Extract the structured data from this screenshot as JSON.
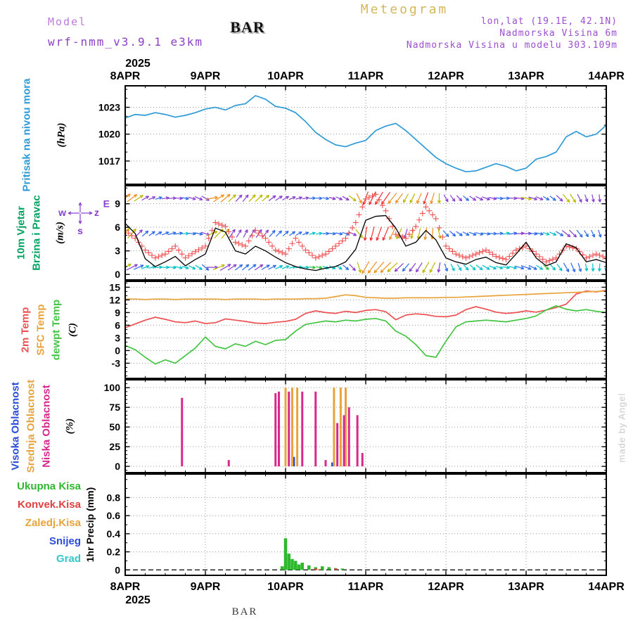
{
  "labels": {
    "meteogram": "Meteogram",
    "model": "Model",
    "model_name": "wrf-nmm_v3.9.1  e3km",
    "station": "BAR",
    "lonlat": "lon,lat (19.1E, 42.1N)",
    "elev": "Nadmorska Visina 6m",
    "model_elev": "Nadmorska Visina u modelu 303.109m",
    "p1_name": "Pritisak na nivou mora",
    "p1_unit": "(hPa)",
    "p2_name1": "10m Vjetar",
    "p2_name2": "Brzina i Pravac",
    "p2_unit": "(m/s)",
    "compass": {
      "left": "w",
      "right": "z",
      "bottom": "s",
      "axis_e": "E"
    },
    "p3_t2m": "2m Temp",
    "p3_sfc": "SFC Temp",
    "p3_dew": "dewpt Temp",
    "p3_unit": "(C)",
    "p4_high": "Visoka Oblacnost",
    "p4_mid": "Srednja Oblacnost",
    "p4_low": "Niska Oblacnost",
    "p4_unit": "(%)",
    "p5_total": "Ukupna Kisa",
    "p5_conv": "Konvek.Kisa",
    "p5_cold": "Zaledj.Kisa",
    "p5_snow": "Snijeg",
    "p5_hail": "Grad",
    "p5_unit": "1hr Precip (mm)",
    "credit": "made by Angel",
    "bottom_station": "BAR",
    "year": "2025"
  },
  "colors": {
    "pressure": "#2E9BD6",
    "wind_line": "#000000",
    "wind_plus": "#F05050",
    "t2m": "#ED5152",
    "sfc": "#E8A33D",
    "dew": "#43C543",
    "cloud_high": "#2B4BD8",
    "cloud_mid": "#E8A33D",
    "cloud_low": "#D8288C",
    "rain": "#2EB82E",
    "conv": "#E04040",
    "cold": "#E8A33D",
    "snow": "#2B4BD8",
    "hail": "#30C8C8",
    "header_purple": "#9B4FD0",
    "meteogram_title": "#D4B85C",
    "credit": "#C9C9C9",
    "grid": "#9A9A9A"
  },
  "chart_data": {
    "type": "line",
    "title": "Meteogram BAR wrf-nmm_v3.9.1 e3km",
    "x": {
      "step_hours": 3,
      "total_hours": 144,
      "tick_hours": [
        0,
        24,
        48,
        72,
        96,
        120,
        144
      ],
      "tick_labels": [
        "8APR",
        "9APR",
        "10APR",
        "11APR",
        "12APR",
        "13APR",
        "14APR"
      ],
      "year": "2025"
    },
    "panels": [
      {
        "id": "pressure",
        "type": "line",
        "ylabel": "(hPa)",
        "ylim": [
          1014.4,
          1025.4
        ],
        "yticks": [
          1017,
          1020,
          1023
        ],
        "yminor": 1,
        "series": [
          {
            "name": "Pritisak na nivou mora",
            "color": "#2E9BD6",
            "values": [
              1021.8,
              1022.2,
              1022.1,
              1022.4,
              1022.2,
              1021.9,
              1022.1,
              1022.4,
              1022.8,
              1023.0,
              1022.7,
              1023.2,
              1023.4,
              1024.3,
              1023.9,
              1023.1,
              1022.9,
              1022.4,
              1021.4,
              1020.2,
              1019.4,
              1018.8,
              1018.6,
              1019.0,
              1019.3,
              1020.4,
              1020.9,
              1021.2,
              1020.4,
              1019.4,
              1018.4,
              1017.4,
              1016.7,
              1016.2,
              1015.8,
              1015.9,
              1016.3,
              1016.7,
              1016.4,
              1015.9,
              1016.2,
              1017.2,
              1017.5,
              1018.0,
              1019.7,
              1020.3,
              1019.7,
              1020.0,
              1021.0
            ]
          }
        ]
      },
      {
        "id": "wind",
        "type": "wind",
        "ylabel": "(m/s)",
        "ylim": [
          -0.7,
          11.3
        ],
        "yticks": [
          0,
          3,
          6,
          9
        ],
        "yminor": 1,
        "speed": [
          6.5,
          5.2,
          2.0,
          1.0,
          1.6,
          2.3,
          1.1,
          1.9,
          2.6,
          5.9,
          5.4,
          3.0,
          2.6,
          3.6,
          3.0,
          2.2,
          1.5,
          1.0,
          0.7,
          0.5,
          0.8,
          1.0,
          1.6,
          3.2,
          6.9,
          7.4,
          7.5,
          5.9,
          3.6,
          4.1,
          5.6,
          4.4,
          2.1,
          1.6,
          1.3,
          1.9,
          2.2,
          1.5,
          1.2,
          2.6,
          4.1,
          2.1,
          1.1,
          1.6,
          3.9,
          3.4,
          1.6,
          1.9,
          1.5
        ],
        "gust_plus": [
          5.6,
          4.6,
          3.1,
          2.1,
          2.6,
          3.6,
          2.1,
          2.9,
          3.6,
          6.6,
          6.1,
          4.1,
          3.6,
          5.6,
          4.6,
          3.1,
          2.6,
          4.6,
          3.1,
          2.1,
          2.6,
          3.6,
          4.6,
          6.6,
          9.6,
          10.2,
          8.1,
          5.1,
          4.6,
          6.1,
          8.6,
          7.1,
          3.6,
          2.6,
          2.1,
          2.6,
          3.1,
          2.3,
          1.9,
          3.1,
          3.6,
          2.6,
          1.6,
          2.1,
          3.6,
          3.3,
          2.1,
          2.6,
          2.1
        ],
        "dir_deg": [
          50,
          55,
          60,
          70,
          80,
          90,
          100,
          110,
          120,
          60,
          50,
          45,
          40,
          45,
          50,
          55,
          60,
          70,
          80,
          90,
          100,
          110,
          120,
          130,
          200,
          210,
          215,
          220,
          210,
          205,
          200,
          195,
          150,
          140,
          130,
          120,
          110,
          100,
          90,
          95,
          100,
          110,
          120,
          130,
          140,
          150,
          160,
          170,
          180
        ]
      },
      {
        "id": "temperature",
        "type": "line",
        "ylabel": "(C)",
        "ylim": [
          -6.6,
          16.4
        ],
        "yticks": [
          -3,
          0,
          3,
          6,
          9,
          12,
          15
        ],
        "yminor": 1,
        "series": [
          {
            "name": "2m Temp",
            "color": "#ED5152",
            "values": [
              5.4,
              6.3,
              7.2,
              7.9,
              7.4,
              6.8,
              6.6,
              7.0,
              6.4,
              6.6,
              7.5,
              7.2,
              6.9,
              6.5,
              6.4,
              6.7,
              6.9,
              7.4,
              8.8,
              9.4,
              9.0,
              8.8,
              9.3,
              9.0,
              9.5,
              9.7,
              9.2,
              7.3,
              8.4,
              8.7,
              8.5,
              8.1,
              8.0,
              8.4,
              9.7,
              10.4,
              9.8,
              9.1,
              8.8,
              9.0,
              9.4,
              9.1,
              9.6,
              10.2,
              11.0,
              13.4,
              14.1,
              13.9,
              14.3
            ]
          },
          {
            "name": "SFC Temp",
            "color": "#E8A33D",
            "values": [
              12.2,
              12.2,
              12.1,
              12.2,
              12.2,
              12.1,
              12.2,
              12.2,
              12.2,
              12.2,
              12.1,
              12.2,
              12.2,
              12.2,
              12.1,
              12.2,
              12.2,
              12.2,
              12.3,
              12.3,
              12.4,
              12.8,
              13.2,
              13.0,
              12.6,
              12.5,
              12.4,
              12.4,
              12.5,
              12.5,
              12.5,
              12.5,
              12.6,
              12.6,
              12.7,
              12.8,
              12.9,
              13.0,
              13.1,
              13.2,
              13.3,
              13.4,
              13.5,
              13.6,
              13.7,
              13.8,
              13.9,
              14.0,
              14.1
            ]
          },
          {
            "name": "dewpt Temp",
            "color": "#43C543",
            "values": [
              1.2,
              0.2,
              -1.6,
              -3.2,
              -2.2,
              -3.0,
              -1.2,
              0.6,
              3.2,
              1.0,
              0.4,
              1.6,
              1.0,
              2.2,
              1.4,
              2.4,
              2.6,
              4.6,
              6.2,
              6.6,
              7.0,
              6.8,
              7.2,
              7.0,
              7.4,
              7.6,
              7.0,
              4.6,
              3.4,
              1.4,
              -1.2,
              -1.6,
              2.2,
              5.6,
              6.8,
              7.0,
              7.2,
              7.0,
              6.8,
              7.2,
              7.6,
              8.2,
              9.6,
              10.6,
              9.8,
              9.4,
              9.7,
              9.3,
              9.0
            ]
          }
        ]
      },
      {
        "id": "cloudiness",
        "type": "bar",
        "ylabel": "(%)",
        "ylim": [
          -8,
          110
        ],
        "yticks": [
          0,
          25,
          50,
          75,
          100
        ],
        "yminor": 5,
        "series": [
          {
            "name": "Visoka Oblacnost",
            "color": "#2B4BD8",
            "points": [
              [
                50.5,
                12
              ],
              [
                62,
                5
              ]
            ]
          },
          {
            "name": "Srednja Oblacnost",
            "color": "#E8A33D",
            "points": [
              [
                48,
                100
              ],
              [
                50,
                100
              ],
              [
                51.5,
                100
              ],
              [
                62.5,
                100
              ],
              [
                64.5,
                100
              ],
              [
                66,
                100
              ]
            ]
          },
          {
            "name": "Niska Oblacnost",
            "color": "#D8288C",
            "points": [
              [
                17,
                87
              ],
              [
                31,
                8
              ],
              [
                45,
                93
              ],
              [
                46,
                95
              ],
              [
                49,
                95
              ],
              [
                53,
                95
              ],
              [
                57,
                95
              ],
              [
                60,
                8
              ],
              [
                63.5,
                55
              ],
              [
                65.5,
                65
              ],
              [
                67,
                75
              ],
              [
                69.5,
                65
              ],
              [
                71,
                17
              ]
            ]
          }
        ]
      },
      {
        "id": "precipitation",
        "type": "bar",
        "ylabel": "1hr Precip (mm)",
        "ylim": [
          -0.06,
          1.06
        ],
        "yticks": [
          0,
          0.2,
          0.4,
          0.6,
          0.8
        ],
        "yminor": 0.1,
        "zero_dashed": true,
        "series": [
          {
            "name": "Ukupna Kisa",
            "color": "#2EB82E",
            "points": [
              [
                47,
                0.04
              ],
              [
                48,
                0.35
              ],
              [
                49,
                0.18
              ],
              [
                50,
                0.12
              ],
              [
                51,
                0.1
              ],
              [
                52,
                0.06
              ],
              [
                53,
                0.08
              ],
              [
                55,
                0.05
              ],
              [
                57,
                0.03
              ],
              [
                59,
                0.04
              ],
              [
                61,
                0.03
              ],
              [
                63,
                0.02
              ],
              [
                65,
                0.015
              ]
            ]
          },
          {
            "name": "Konvek.Kisa",
            "color": "#E04040",
            "points": [
              [
                57,
                0.015
              ],
              [
                63,
                0.015
              ]
            ]
          },
          {
            "name": "Zaledj.Kisa",
            "color": "#E8A33D",
            "points": [
              [
                58,
                0.01
              ]
            ]
          },
          {
            "name": "Snijeg",
            "color": "#2B4BD8",
            "points": []
          },
          {
            "name": "Grad",
            "color": "#30C8C8",
            "points": []
          }
        ]
      }
    ]
  }
}
